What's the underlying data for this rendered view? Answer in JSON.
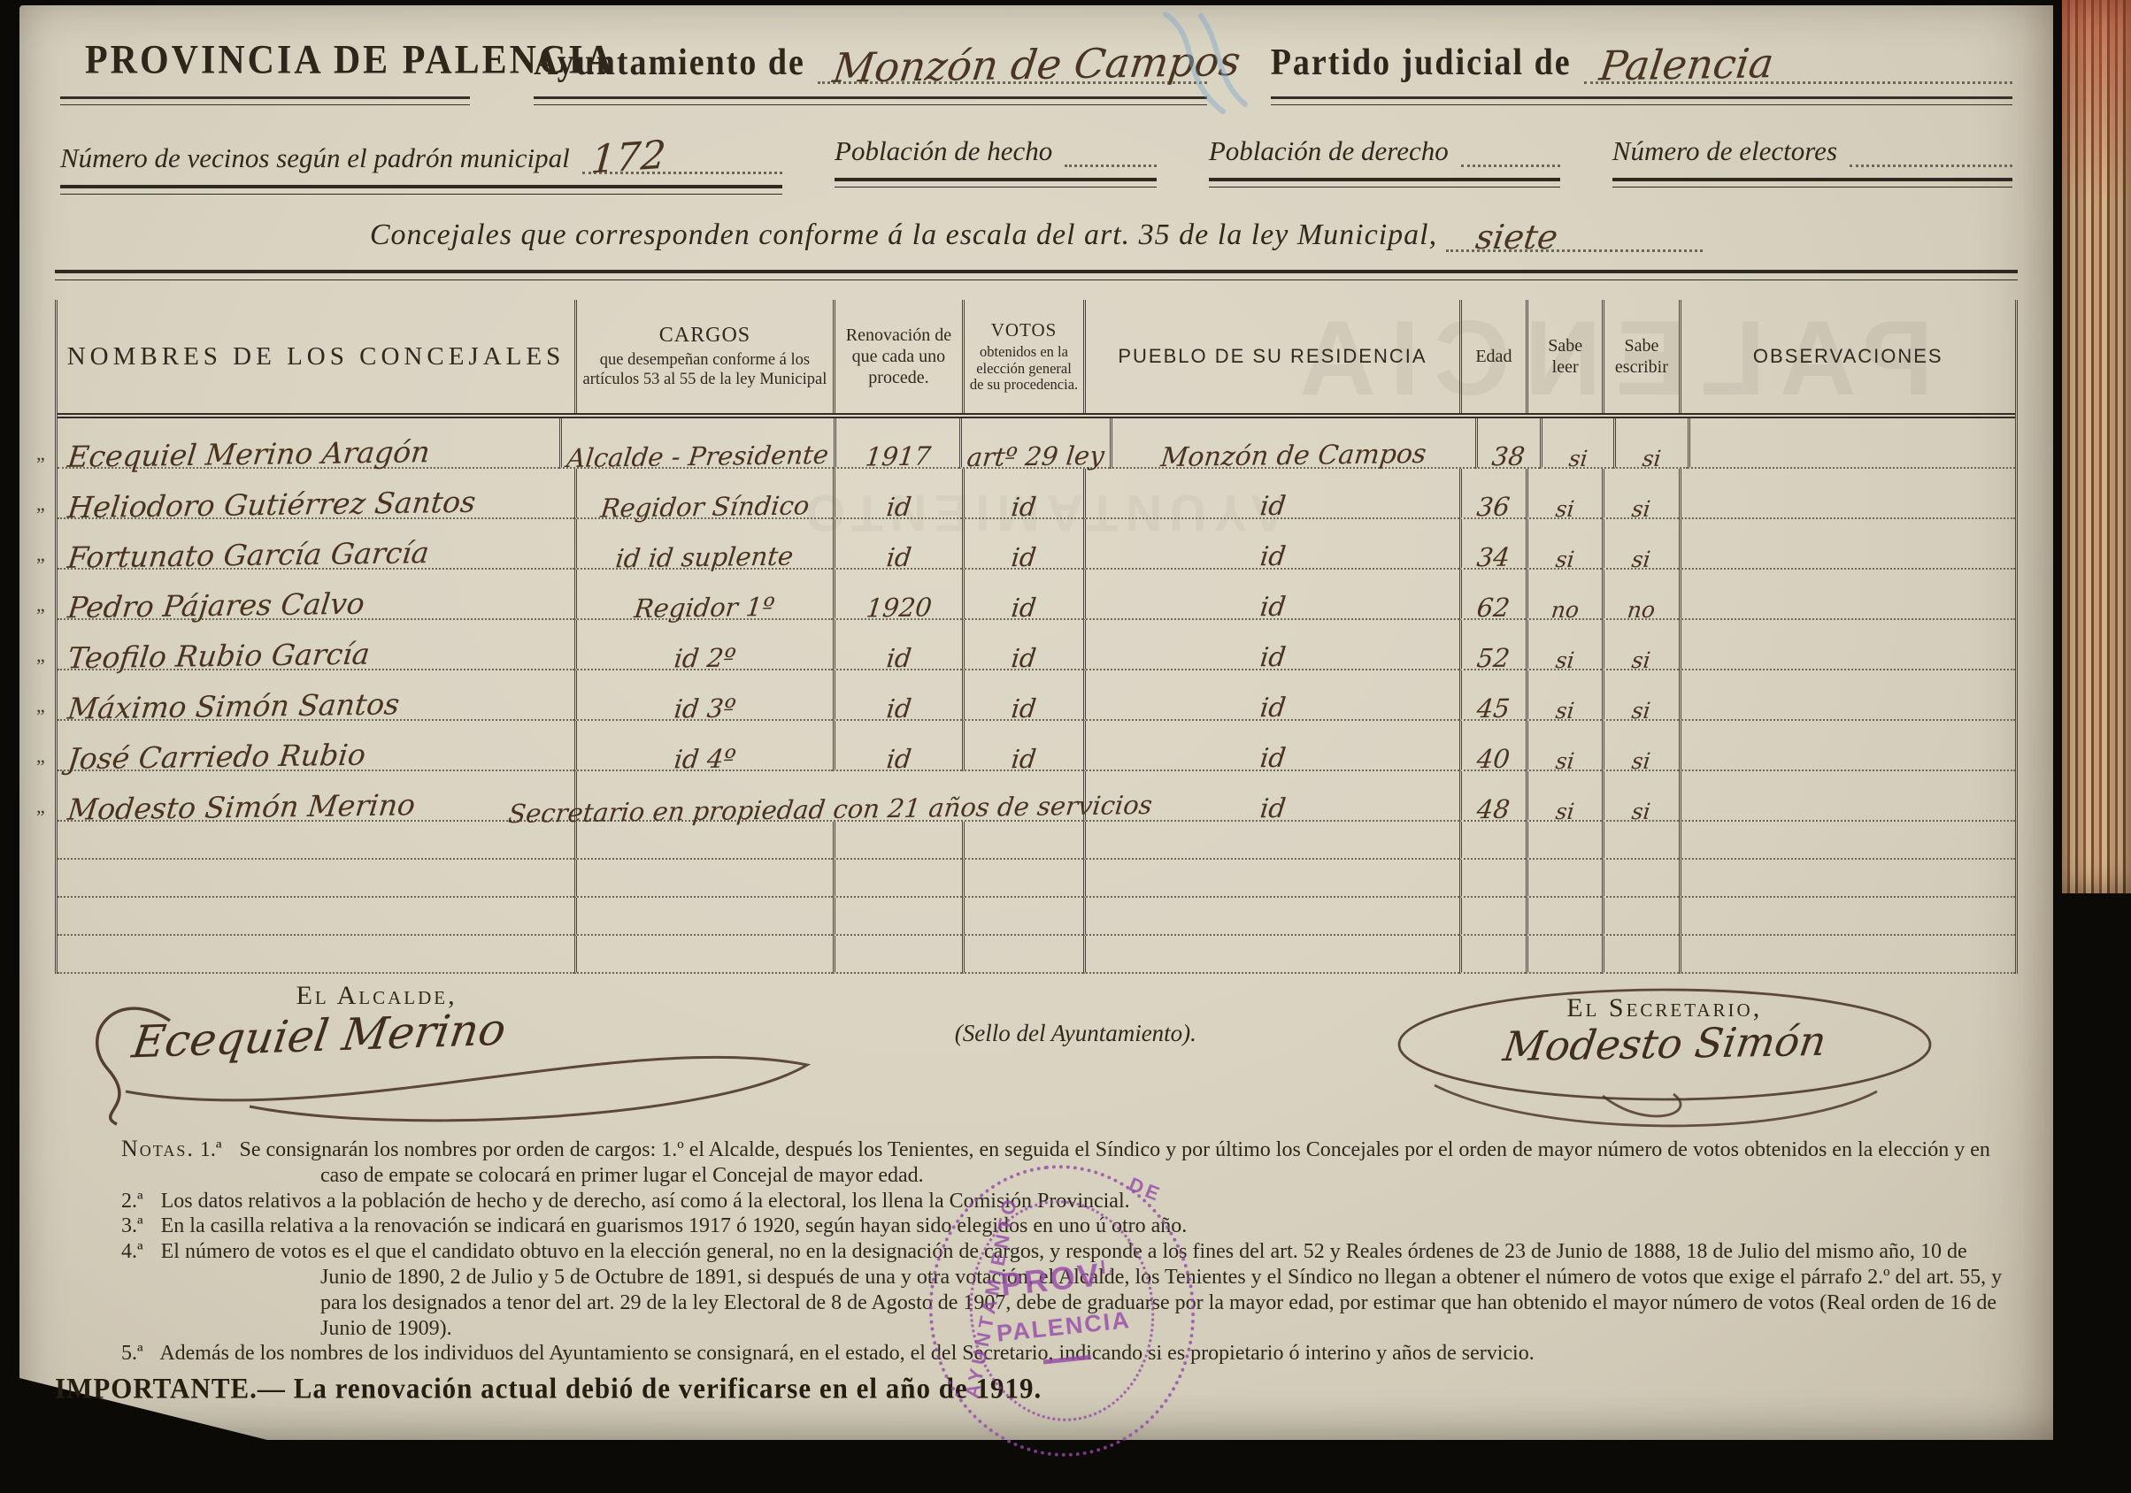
{
  "header": {
    "province": "PROVINCIA DE PALENCIA",
    "ayuntamiento_label": "Ayuntamiento de",
    "ayuntamiento_value": "Monzón de Campos",
    "partido_label": "Partido judicial de",
    "partido_value": "Palencia"
  },
  "stats": {
    "vecinos_label": "Número de vecinos según el padrón municipal",
    "vecinos_value": "172",
    "hecho_label": "Población de hecho",
    "derecho_label": "Población de derecho",
    "electores_label": "Número de electores"
  },
  "scale_line": {
    "label": "Concejales que corresponden conforme á la escala del art. 35 de la ley Municipal,",
    "value": "siete"
  },
  "table": {
    "margin_mark": "„",
    "headers": {
      "nombres": "NOMBRES DE LOS CONCEJALES",
      "cargos_title": "CARGOS",
      "cargos_sub": "que desempeñan conforme á los artículos 53 al 55 de la ley Municipal",
      "renovacion": "Renovación de que cada uno procede.",
      "votos_title": "VOTOS",
      "votos_sub": "obtenidos en la elección general de su procedencia.",
      "pueblo": "PUEBLO DE SU RESIDENCIA",
      "edad": "Edad",
      "leer": "Sabe leer",
      "escribir": "Sabe escribir",
      "observaciones": "OBSERVACIONES"
    },
    "rows": [
      {
        "name": "Ecequiel Merino Aragón",
        "cargo": "Alcalde - Presidente",
        "renovacion": "1917",
        "votos": "artº 29 ley",
        "pueblo": "Monzón de Campos",
        "edad": "38",
        "leer": "si",
        "escribir": "si",
        "obs": ""
      },
      {
        "name": "Heliodoro Gutiérrez Santos",
        "cargo": "Regidor Síndico",
        "renovacion": "id",
        "votos": "id",
        "pueblo": "id",
        "edad": "36",
        "leer": "si",
        "escribir": "si",
        "obs": ""
      },
      {
        "name": "Fortunato García García",
        "cargo": "id id suplente",
        "renovacion": "id",
        "votos": "id",
        "pueblo": "id",
        "edad": "34",
        "leer": "si",
        "escribir": "si",
        "obs": ""
      },
      {
        "name": "Pedro Pájares Calvo",
        "cargo": "Regidor 1º",
        "renovacion": "1920",
        "votos": "id",
        "pueblo": "id",
        "edad": "62",
        "leer": "no",
        "escribir": "no",
        "obs": ""
      },
      {
        "name": "Teofilo Rubio García",
        "cargo": "id 2º",
        "renovacion": "id",
        "votos": "id",
        "pueblo": "id",
        "edad": "52",
        "leer": "si",
        "escribir": "si",
        "obs": ""
      },
      {
        "name": "Máximo Simón Santos",
        "cargo": "id 3º",
        "renovacion": "id",
        "votos": "id",
        "pueblo": "id",
        "edad": "45",
        "leer": "si",
        "escribir": "si",
        "obs": ""
      },
      {
        "name": "José Carriedo Rubio",
        "cargo": "id 4º",
        "renovacion": "id",
        "votos": "id",
        "pueblo": "id",
        "edad": "40",
        "leer": "si",
        "escribir": "si",
        "obs": ""
      },
      {
        "name": "Modesto Simón Merino",
        "cargo": "Secretario en propiedad con 21 años de servicios",
        "cargo_span": true,
        "pueblo": "id",
        "edad": "48",
        "leer": "si",
        "escribir": "si",
        "obs": ""
      }
    ],
    "empty_rows": 4
  },
  "signatures": {
    "alcalde_label": "El Alcalde,",
    "alcalde_signature": "Ecequiel Merino",
    "seal_caption": "(Sello del Ayuntamiento).",
    "secretario_label": "El Secretario,",
    "secretario_signature": "Modesto Simón"
  },
  "stamp": {
    "line1": "PROV",
    "line1_sup": "l.",
    "line2": "PALENCIA",
    "arc_left": "AYUNTAMIENTO",
    "arc_right": "DE",
    "ink_color": "#944aa8"
  },
  "ghost_bleed": {
    "text1": "PALENCIA",
    "text2": "AYUNTAMIENTO"
  },
  "notas": {
    "label": "Notas.",
    "items": [
      {
        "num": "1.ª",
        "text": "Se consignarán los nombres por orden de cargos: 1.º el Alcalde, después los Tenientes, en seguida el Síndico y por último los Concejales por el orden de mayor número de votos obtenidos en la elección y en caso de empate se colocará en primer lugar el Concejal de mayor edad."
      },
      {
        "num": "2.ª",
        "text": "Los datos relativos a la población de hecho y de derecho, así como á la electoral, los llena la Comisión Provincial."
      },
      {
        "num": "3.ª",
        "text": "En la casilla relativa a la renovación se indicará en guarismos 1917 ó 1920, según hayan sido elegidos en uno ú otro año."
      },
      {
        "num": "4.ª",
        "text": "El número de votos es el que el candidato obtuvo en la elección general, no en la designación de cargos, y responde a los fines del art. 52 y Reales órdenes de 23 de Junio de 1888, 18 de Julio del mismo año, 10 de Junio de 1890, 2 de Julio y 5 de Octubre de 1891, si después de una y otra votación, el Alcalde, los Tenientes y el Síndico no llegan a obtener el número de votos que exige el párrafo 2.º del art. 55, y para los designados a tenor del art. 29 de la ley Electoral de 8 de Agosto de 1907, debe de graduarse por la mayor edad, por estimar que han obtenido el mayor número de votos (Real orden de 16 de Junio de 1909)."
      },
      {
        "num": "5.ª",
        "text": "Además de los nombres de los individuos del Ayuntamiento se consignará, en el estado, el del Secretario, indicando si es propietario ó interino y años de servicio."
      }
    ]
  },
  "importante": {
    "label": "IMPORTANTE.—",
    "text": "La renovación actual debió de verificarse en el año de 1919."
  }
}
